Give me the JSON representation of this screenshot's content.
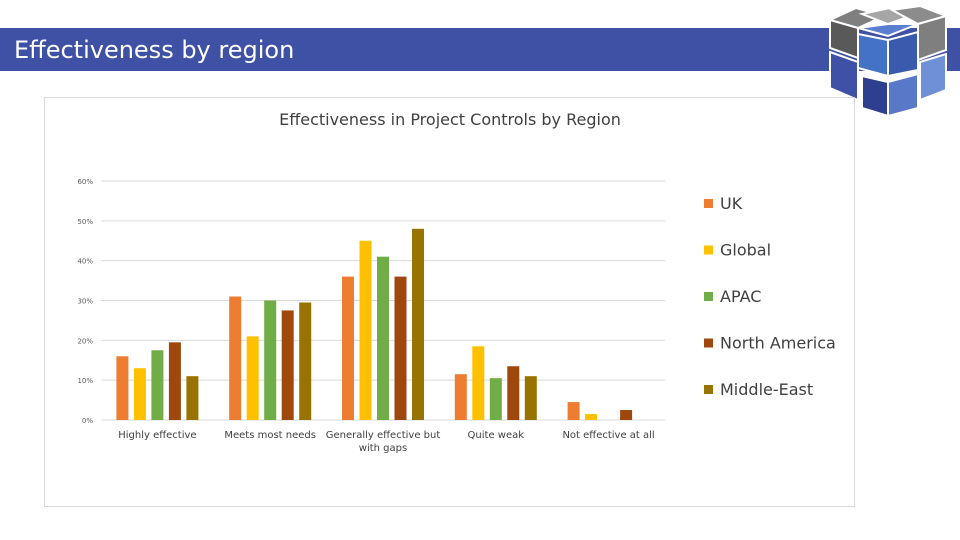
{
  "slide": {
    "title": "Effectiveness by region"
  },
  "colors": {
    "title_bar": "#3f51a5",
    "UK": "#ed7d31",
    "Global": "#ffc000",
    "APAC": "#70ad47",
    "North America": "#9e480e",
    "Middle-East": "#997300"
  },
  "logo": {
    "icon": "cube-logo-icon"
  },
  "chart_data": {
    "type": "bar",
    "title": "Effectiveness in Project Controls by Region",
    "xlabel": "",
    "ylabel": "",
    "ylim": [
      0,
      60
    ],
    "y_ticks": [
      {
        "value": 0,
        "label": "0%"
      },
      {
        "value": 10,
        "label": "10%"
      },
      {
        "value": 20,
        "label": "20%"
      },
      {
        "value": 30,
        "label": "30%"
      },
      {
        "value": 40,
        "label": "40%"
      },
      {
        "value": 50,
        "label": "50%"
      },
      {
        "value": 60,
        "label": "60%"
      }
    ],
    "grid": true,
    "legend_position": "right",
    "categories": [
      [
        "Highly effective"
      ],
      [
        "Meets most needs"
      ],
      [
        "Generally effective but",
        "with gaps"
      ],
      [
        "Quite weak"
      ],
      [
        "Not effective at all"
      ]
    ],
    "series": [
      {
        "name": "UK",
        "values": [
          16,
          31,
          36,
          11.5,
          4.5
        ]
      },
      {
        "name": "Global",
        "values": [
          13,
          21,
          45,
          18.5,
          1.5
        ]
      },
      {
        "name": "APAC",
        "values": [
          17.5,
          30,
          41,
          10.5,
          0
        ]
      },
      {
        "name": "North America",
        "values": [
          19.5,
          27.5,
          36,
          13.5,
          2.5
        ]
      },
      {
        "name": "Middle-East",
        "values": [
          11,
          29.5,
          48,
          11,
          0
        ]
      }
    ]
  }
}
